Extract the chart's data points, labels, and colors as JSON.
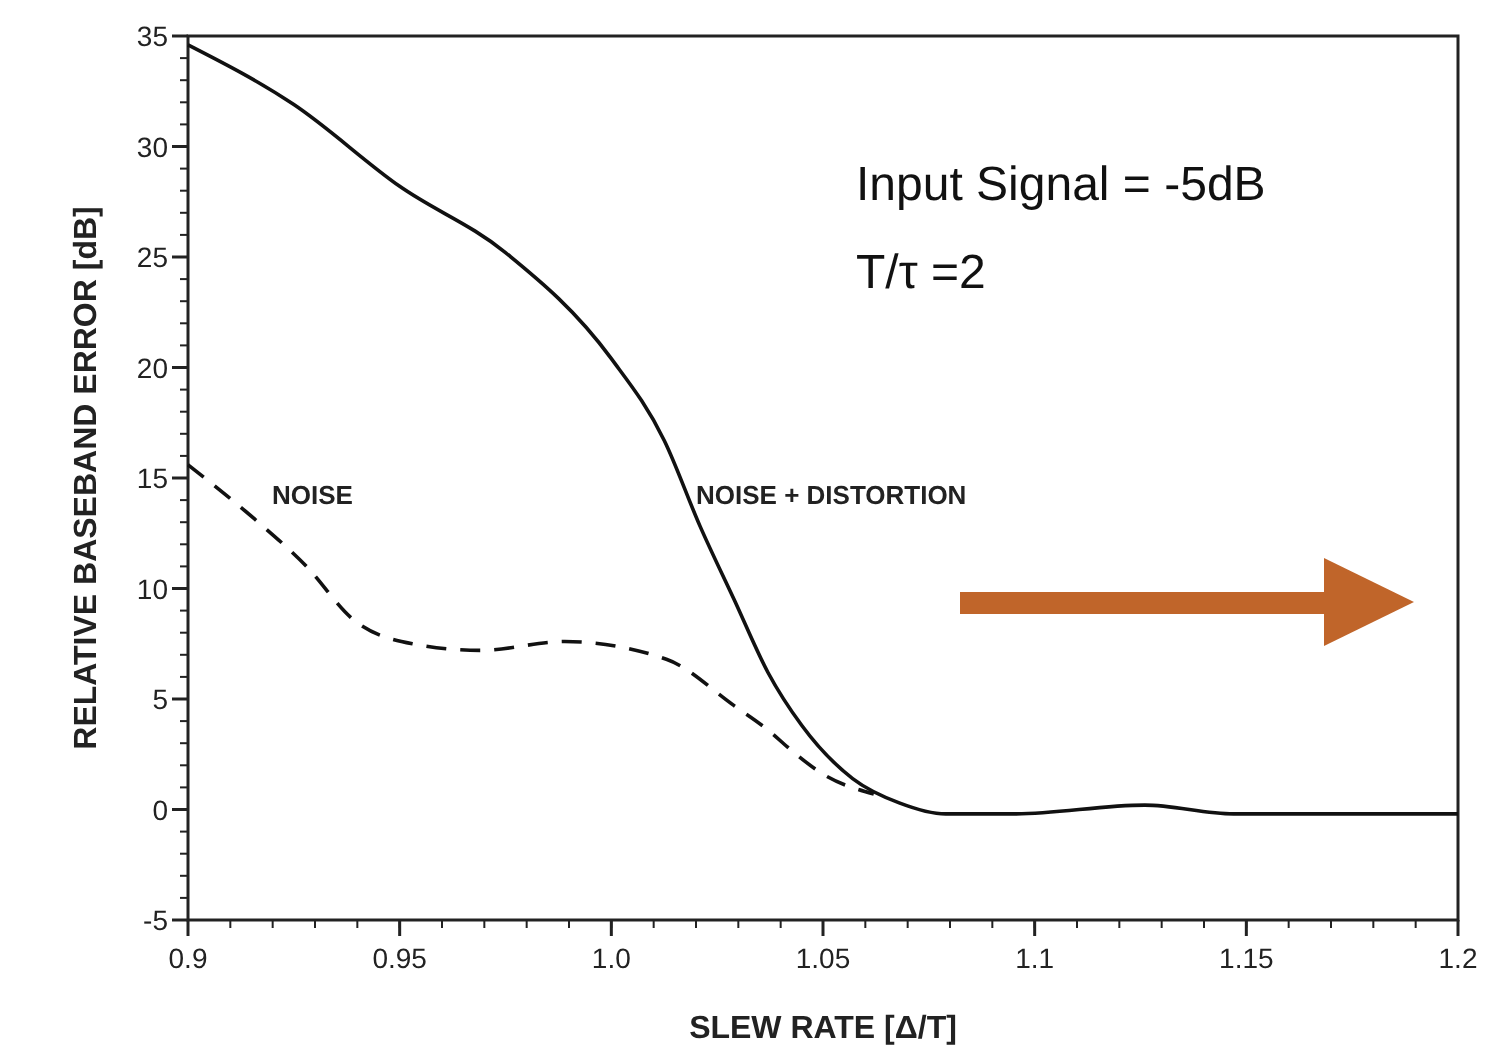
{
  "chart_data": {
    "type": "line",
    "xlabel": "SLEW RATE [Δ/T]",
    "ylabel": "RELATIVE BASEBAND ERROR [dB]",
    "xlim": [
      0.9,
      1.2
    ],
    "xticks": [
      0.9,
      0.95,
      {
        "value": 1.0,
        "label": "1.0"
      },
      1.05,
      1.1,
      1.15,
      1.2
    ],
    "ylim": [
      -5,
      35
    ],
    "yticks": [
      -5,
      0,
      5,
      10,
      15,
      20,
      25,
      30,
      35
    ],
    "grid": false,
    "series": [
      {
        "color": "#111111",
        "line_style": "solid",
        "x": [
          0.9,
          0.925,
          0.95,
          0.975,
          1.0,
          1.0125,
          1.021,
          1.029,
          1.037,
          1.045,
          1.057,
          1.068,
          1.079,
          1.095,
          1.126,
          1.147,
          1.2
        ],
        "values": [
          34.6,
          31.9,
          28.2,
          25.2,
          20.4,
          16.7,
          12.8,
          9.5,
          6.2,
          3.8,
          1.4,
          0.3,
          -0.2,
          -0.2,
          0.2,
          -0.2,
          -0.2
        ]
      },
      {
        "color": "#111111",
        "line_style": "dashed",
        "x": [
          0.9,
          0.916,
          0.928,
          0.939,
          0.953,
          0.969,
          0.989,
          1.013,
          1.029,
          1.037,
          1.043,
          1.05,
          1.062
        ],
        "values": [
          15.6,
          13.1,
          11.0,
          8.6,
          7.5,
          7.2,
          7.6,
          6.8,
          4.7,
          3.6,
          2.6,
          1.6,
          0.7
        ]
      }
    ],
    "annotations": [
      "NOISE",
      "NOISE + DISTORTION",
      "Input Signal = -5dB",
      "T/τ =2"
    ]
  }
}
